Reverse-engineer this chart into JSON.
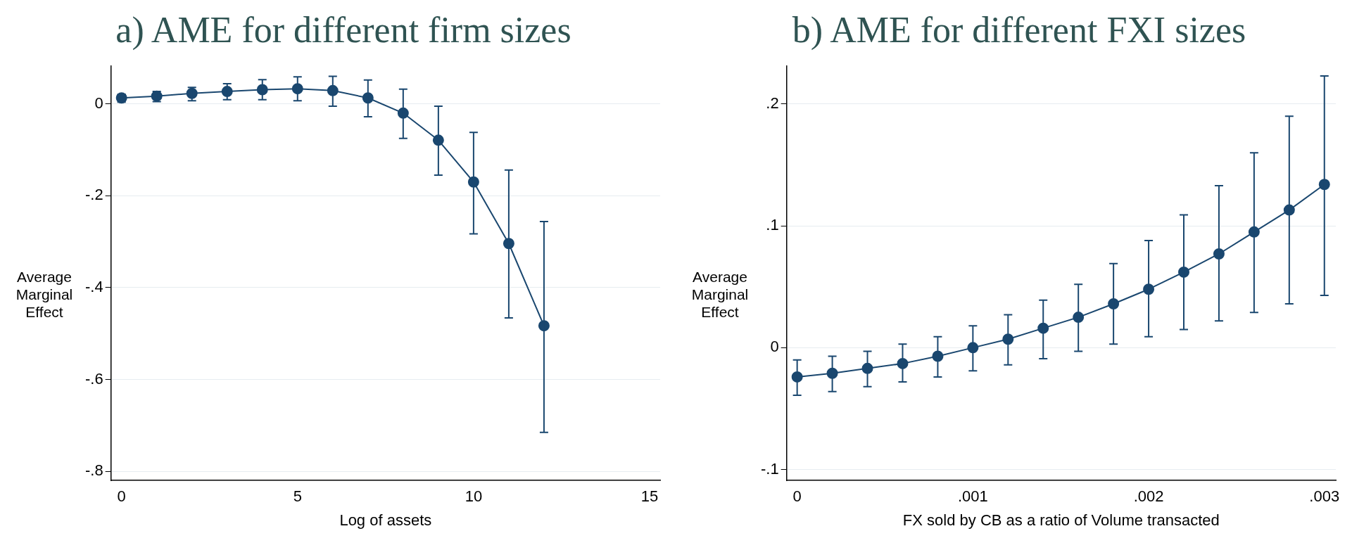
{
  "chart_data": [
    {
      "type": "line",
      "title": "a) AME for different firm sizes",
      "xlabel": "Log of assets",
      "ylabel": "Average Marginal Effect",
      "x": [
        0,
        1,
        2,
        3,
        4,
        5,
        6,
        7,
        8,
        9,
        10,
        11,
        12
      ],
      "series": [
        {
          "color": "#1a476f",
          "values": [
            0.013,
            0.017,
            0.023,
            0.027,
            0.031,
            0.033,
            0.029,
            0.013,
            -0.02,
            -0.079,
            -0.17,
            -0.304,
            -0.483
          ],
          "errors": [
            [
              0.004,
              0.021
            ],
            [
              0.005,
              0.027
            ],
            [
              0.007,
              0.036
            ],
            [
              0.009,
              0.044
            ],
            [
              0.009,
              0.053
            ],
            [
              0.007,
              0.059
            ],
            [
              -0.005,
              0.06
            ],
            [
              -0.028,
              0.052
            ],
            [
              -0.075,
              0.032
            ],
            [
              -0.155,
              -0.005
            ],
            [
              -0.283,
              -0.062
            ],
            [
              -0.466,
              -0.144
            ],
            [
              -0.715,
              -0.256
            ]
          ]
        }
      ],
      "xlim": [
        -0.3,
        15.3
      ],
      "xticks": [
        0,
        5,
        10,
        15
      ],
      "ylim": [
        -0.82,
        0.082
      ],
      "yticks": [
        {
          "value": -0.8,
          "label": "-.8"
        },
        {
          "value": -0.6,
          "label": "-.6"
        },
        {
          "value": -0.4,
          "label": "-.4"
        },
        {
          "value": -0.2,
          "label": "-.2"
        },
        0
      ],
      "grid": "y",
      "marker": "circle",
      "line_style": "solid"
    },
    {
      "type": "line",
      "title": "b) AME for different FXI sizes",
      "xlabel": "FX sold by CB as a ratio of Volume transacted",
      "ylabel": "Average Marginal Effect",
      "x": [
        0,
        0.0002,
        0.0004,
        0.0006,
        0.0008,
        0.001,
        0.0012,
        0.0014,
        0.0016,
        0.0018,
        0.002,
        0.0022,
        0.0024,
        0.0026,
        0.0028,
        0.003
      ],
      "series": [
        {
          "color": "#1a476f",
          "values": [
            -0.024,
            -0.021,
            -0.017,
            -0.013,
            -0.007,
            0.0,
            0.007,
            0.016,
            0.025,
            0.036,
            0.048,
            0.062,
            0.077,
            0.095,
            0.113,
            0.134
          ],
          "errors": [
            [
              -0.039,
              -0.01
            ],
            [
              -0.036,
              -0.007
            ],
            [
              -0.032,
              -0.003
            ],
            [
              -0.028,
              0.003
            ],
            [
              -0.024,
              0.009
            ],
            [
              -0.019,
              0.018
            ],
            [
              -0.014,
              0.027
            ],
            [
              -0.009,
              0.039
            ],
            [
              -0.003,
              0.052
            ],
            [
              0.003,
              0.069
            ],
            [
              0.009,
              0.088
            ],
            [
              0.015,
              0.109
            ],
            [
              0.022,
              0.133
            ],
            [
              0.029,
              0.16
            ],
            [
              0.036,
              0.19
            ],
            [
              0.043,
              0.223
            ]
          ]
        }
      ],
      "xlim": [
        -6e-05,
        0.003065
      ],
      "xticks": [
        0,
        {
          "value": 0.001,
          "label": ".001"
        },
        {
          "value": 0.002,
          "label": ".002"
        },
        {
          "value": 0.003,
          "label": ".003"
        }
      ],
      "ylim": [
        -0.109,
        0.231
      ],
      "yticks": [
        {
          "value": -0.1,
          "label": "-.1"
        },
        0,
        {
          "value": 0.1,
          "label": ".1"
        },
        {
          "value": 0.2,
          "label": ".2"
        }
      ],
      "grid": "y",
      "marker": "circle",
      "line_style": "solid"
    }
  ]
}
